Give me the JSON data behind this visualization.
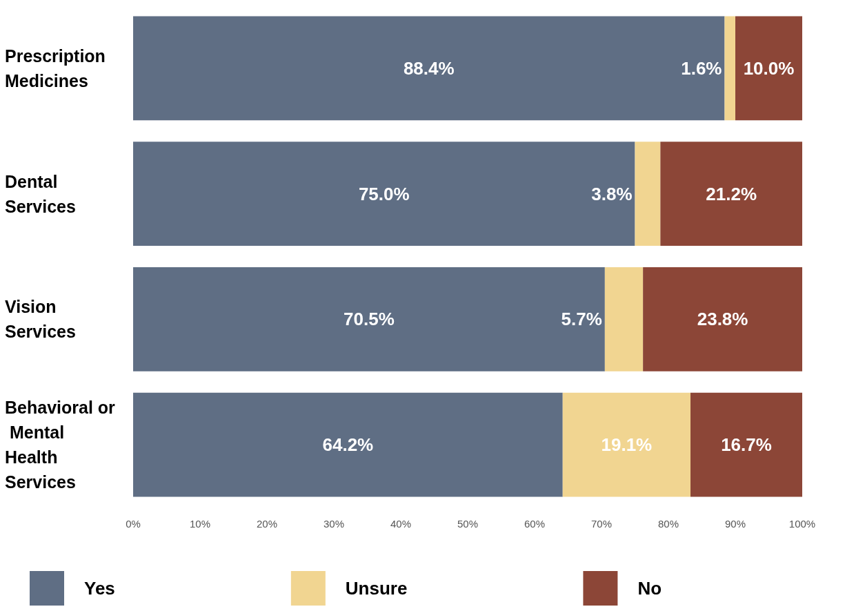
{
  "chart_data": {
    "type": "bar",
    "orientation": "horizontal",
    "stacked": true,
    "legend": "bottom",
    "grid": false,
    "categories": [
      "Prescription Medicines",
      "Dental Services",
      "Vision Services",
      "Behavioral or Mental Health Services"
    ],
    "series": [
      {
        "name": "Yes",
        "color": "#5f6e84",
        "values": [
          88.4,
          75.0,
          70.5,
          64.2
        ],
        "value_labels": [
          "88.4%",
          "75.0%",
          "70.5%",
          "64.2%"
        ]
      },
      {
        "name": "Unsure",
        "color": "#f1d591",
        "values": [
          1.6,
          3.8,
          5.7,
          19.1
        ],
        "value_labels": [
          "1.6%",
          "3.8%",
          "5.7%",
          "19.1%"
        ]
      },
      {
        "name": "No",
        "color": "#8c4637",
        "values": [
          10.0,
          21.2,
          23.8,
          16.7
        ],
        "value_labels": [
          "10.0%",
          "21.2%",
          "23.8%",
          "16.7%"
        ]
      }
    ],
    "xlim": [
      0,
      100
    ],
    "xticks": [
      {
        "value": 0,
        "label": "0%"
      },
      {
        "value": 10,
        "label": "10%"
      },
      {
        "value": 20,
        "label": "20%"
      },
      {
        "value": 30,
        "label": "30%"
      },
      {
        "value": 40,
        "label": "40%"
      },
      {
        "value": 50,
        "label": "50%"
      },
      {
        "value": 60,
        "label": "60%"
      },
      {
        "value": 70,
        "label": "70%"
      },
      {
        "value": 80,
        "label": "80%"
      },
      {
        "value": 90,
        "label": "90%"
      },
      {
        "value": 100,
        "label": "100%"
      }
    ]
  }
}
